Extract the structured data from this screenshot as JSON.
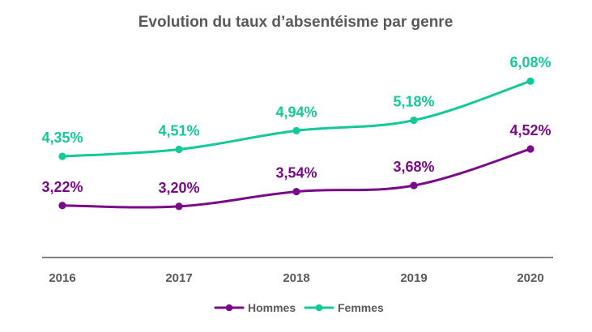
{
  "chart_data": {
    "type": "line",
    "title": "Evolution du taux d’absentéisme par genre",
    "categories": [
      "2016",
      "2017",
      "2018",
      "2019",
      "2020"
    ],
    "ylim": [
      0,
      7
    ],
    "series": [
      {
        "name": "Hommes",
        "color": "#7B0A8A",
        "values": [
          3.22,
          3.2,
          3.54,
          3.68,
          4.52
        ],
        "labels": [
          "3,22%",
          "3,20%",
          "3,54%",
          "3,68%",
          "4,52%"
        ]
      },
      {
        "name": "Femmes",
        "color": "#12C99A",
        "values": [
          4.35,
          4.51,
          4.94,
          5.18,
          6.08
        ],
        "labels": [
          "4,35%",
          "4,51%",
          "4,94%",
          "5,18%",
          "6,08%"
        ]
      }
    ],
    "legend": {
      "position": "bottom"
    },
    "grid": false
  }
}
